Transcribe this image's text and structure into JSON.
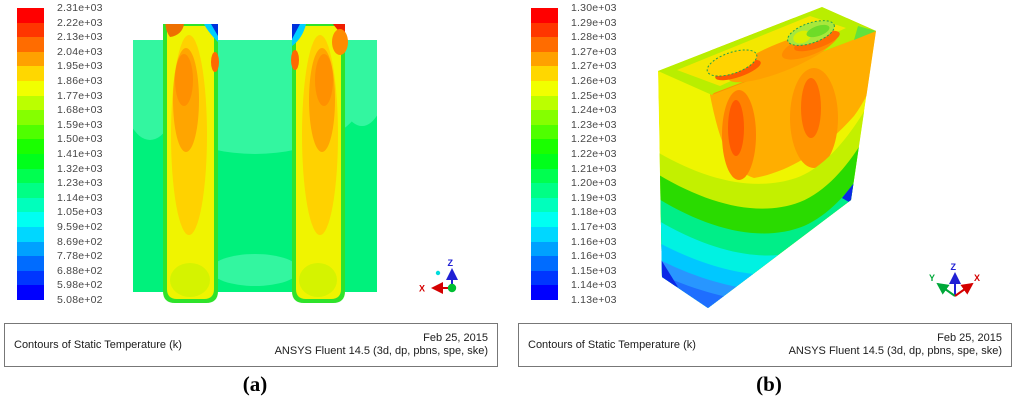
{
  "colors": {
    "colormap": [
      "#FF0000",
      "#FF3600",
      "#FF6C00",
      "#FFA100",
      "#FFD700",
      "#F1FF00",
      "#BBFF00",
      "#85FF00",
      "#4FFF00",
      "#1AFF00",
      "#00FF1B",
      "#00FF50",
      "#00FF86",
      "#00FFBC",
      "#00FFF2",
      "#00D7FF",
      "#00A1FF",
      "#006CFF",
      "#0036FF",
      "#0000FF"
    ],
    "wall_background": "#00F17C",
    "wall_halo": "#33F6A0",
    "axis_x_color": "#D40000",
    "axis_y_color": "#00A839",
    "axis_z_color": "#2020D4"
  },
  "panels": [
    {
      "id": "a",
      "sub_label": "(a)",
      "caption": {
        "title": "Contours of Static Temperature (k)",
        "date": "Feb 25, 2015",
        "software": "ANSYS Fluent 14.5 (3d, dp, pbns, spe, ske)"
      },
      "legend_values": [
        "2.31e+03",
        "2.22e+03",
        "2.13e+03",
        "2.04e+03",
        "1.95e+03",
        "1.86e+03",
        "1.77e+03",
        "1.68e+03",
        "1.59e+03",
        "1.50e+03",
        "1.41e+03",
        "1.32e+03",
        "1.23e+03",
        "1.14e+03",
        "1.05e+03",
        "9.59e+02",
        "8.69e+02",
        "7.78e+02",
        "6.88e+02",
        "5.98e+02",
        "5.08e+02"
      ],
      "triad_axes": {
        "x": "X",
        "z": "Z"
      }
    },
    {
      "id": "b",
      "sub_label": "(b)",
      "caption": {
        "title": "Contours of Static Temperature (k)",
        "date": "Feb 25, 2015",
        "software": "ANSYS Fluent 14.5 (3d, dp, pbns, spe, ske)"
      },
      "legend_values": [
        "1.30e+03",
        "1.29e+03",
        "1.28e+03",
        "1.27e+03",
        "1.27e+03",
        "1.26e+03",
        "1.25e+03",
        "1.24e+03",
        "1.23e+03",
        "1.22e+03",
        "1.22e+03",
        "1.21e+03",
        "1.20e+03",
        "1.19e+03",
        "1.18e+03",
        "1.17e+03",
        "1.16e+03",
        "1.16e+03",
        "1.15e+03",
        "1.14e+03",
        "1.13e+03"
      ],
      "triad_axes": {
        "x": "X",
        "y": "Y",
        "z": "Z"
      }
    }
  ],
  "chart_data": [
    {
      "type": "heatmap",
      "panel": "a",
      "title": "Contours of Static Temperature (k)",
      "unit": "K",
      "date": "Feb 25, 2015",
      "software": "ANSYS Fluent 14.5 (3d, dp, pbns, spe, ske)",
      "scale_min": 508,
      "scale_max": 2310,
      "levels": [
        2310,
        2220,
        2130,
        2040,
        1950,
        1860,
        1770,
        1680,
        1590,
        1500,
        1410,
        1320,
        1230,
        1140,
        1050,
        959,
        869,
        778,
        688,
        598,
        508
      ],
      "legend_position": "left",
      "view": "front view: square furnace wall (~1350 K, green) with two vertical burner channels (~1700-1950 K, yellow/orange cores), hot spots to ~2310 K (red) and cold streaks to ~508 K (blue) at channel tops"
    },
    {
      "type": "heatmap",
      "panel": "b",
      "title": "Contours of Static Temperature (k)",
      "unit": "K",
      "date": "Feb 25, 2015",
      "software": "ANSYS Fluent 14.5 (3d, dp, pbns, spe, ske)",
      "scale_min": 1130,
      "scale_max": 1300,
      "levels": [
        1300,
        1291,
        1283,
        1274,
        1266,
        1258,
        1249,
        1240,
        1232,
        1224,
        1215,
        1206,
        1198,
        1190,
        1181,
        1172,
        1164,
        1156,
        1147,
        1138,
        1130
      ],
      "legend_position": "left",
      "view": "isometric slab with two circular burner ports on top face; top ~1270-1300 K (orange/red), grading to ~1130-1150 K (blue) at the bottom"
    }
  ]
}
